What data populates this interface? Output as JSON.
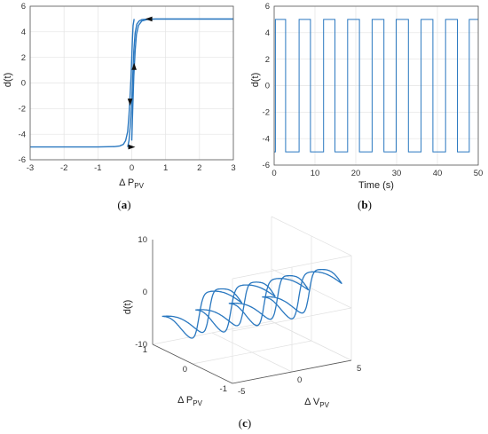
{
  "chart_data": [
    {
      "panel": "(a)",
      "type": "line",
      "xlabel": "Δ P",
      "xlabel_sub": "PV",
      "ylabel": "d(t)",
      "xlim": [
        -3,
        3
      ],
      "ylim": [
        -6,
        6
      ],
      "xticks": [
        -3,
        -2,
        -1,
        0,
        1,
        2,
        3
      ],
      "yticks": [
        -6,
        -4,
        -2,
        0,
        2,
        4,
        6
      ],
      "grid": true,
      "color": "#2a78c0",
      "series": [
        {
          "values_note": "lower branch",
          "x": [
            -3,
            -1,
            -0.5,
            -0.35,
            -0.25,
            -0.18,
            -0.12,
            -0.08,
            -0.05,
            -0.02,
            0.0,
            0.02,
            0.04,
            0.07
          ],
          "y": [
            -5,
            -5,
            -4.97,
            -4.92,
            -4.8,
            -4.5,
            -3.8,
            -2.5,
            -1.0,
            0.5,
            2.0,
            3.5,
            4.5,
            5.0
          ]
        },
        {
          "x": [
            -0.12,
            -0.08,
            -0.04,
            0.0,
            0.03,
            0.06,
            0.1,
            0.15,
            0.22,
            0.3,
            0.5,
            1,
            3
          ],
          "y": [
            -5.0,
            -4.5,
            -3.2,
            -1.5,
            0.5,
            2.5,
            3.9,
            4.6,
            4.85,
            4.95,
            5,
            5,
            5
          ]
        },
        {
          "x": [
            0.0,
            0.03,
            0.06,
            0.1,
            0.14,
            0.2,
            0.3,
            0.45,
            0.7,
            1.2,
            3
          ],
          "y": [
            -4.5,
            -2.0,
            0.5,
            2.5,
            3.8,
            4.5,
            4.85,
            4.95,
            5,
            5,
            5
          ]
        }
      ],
      "arrows": [
        {
          "at": [
            0.5,
            5.0
          ],
          "dir": "left"
        },
        {
          "at": [
            -0.05,
            -1.5
          ],
          "dir": "down"
        },
        {
          "at": [
            0.07,
            1.3
          ],
          "dir": "up"
        },
        {
          "at": [
            0.0,
            -5.0
          ],
          "dir": "right"
        }
      ],
      "caption": "(a)"
    },
    {
      "panel": "(b)",
      "type": "line",
      "xlabel": "Time (s)",
      "ylabel": "d(t)",
      "xlim": [
        0,
        50
      ],
      "ylim": [
        -6,
        6
      ],
      "xticks": [
        0,
        10,
        20,
        30,
        40,
        50
      ],
      "yticks": [
        -6,
        -4,
        -2,
        0,
        2,
        4,
        6
      ],
      "grid": true,
      "color": "#2a78c0",
      "square_wave": {
        "high": 5,
        "low": -5,
        "start_value": -5,
        "transitions": [
          0.3,
          2.8,
          6.1,
          8.9,
          12.1,
          14.9,
          18.0,
          20.9,
          24.0,
          26.9,
          29.9,
          32.9,
          36.0,
          38.9,
          42.0,
          44.9,
          47.8
        ]
      },
      "caption": "(b)"
    },
    {
      "panel": "(c)",
      "type": "line",
      "projection": "3d",
      "xlabel": "Δ P",
      "xlabel_sub": "PV",
      "ylabel": "Δ V",
      "ylabel_sub": "PV",
      "zlabel": "d(t)",
      "xlim": [
        -1,
        1
      ],
      "ylim": [
        -5,
        5
      ],
      "zlim": [
        -10,
        10
      ],
      "xticks": [
        -1,
        0,
        1
      ],
      "yticks": [
        -5,
        0,
        5
      ],
      "zticks": [
        -10,
        0,
        10
      ],
      "grid": true,
      "color": "#2a78c0",
      "hysteresis_loops": [
        {
          "v_center": -4.2,
          "v_amp": 1.0
        },
        {
          "v_center": -1.4,
          "v_amp": 1.2
        },
        {
          "v_center": 1.4,
          "v_amp": 1.2
        },
        {
          "v_center": 4.2,
          "v_amp": 1.0
        }
      ],
      "caption": "(c)"
    }
  ]
}
